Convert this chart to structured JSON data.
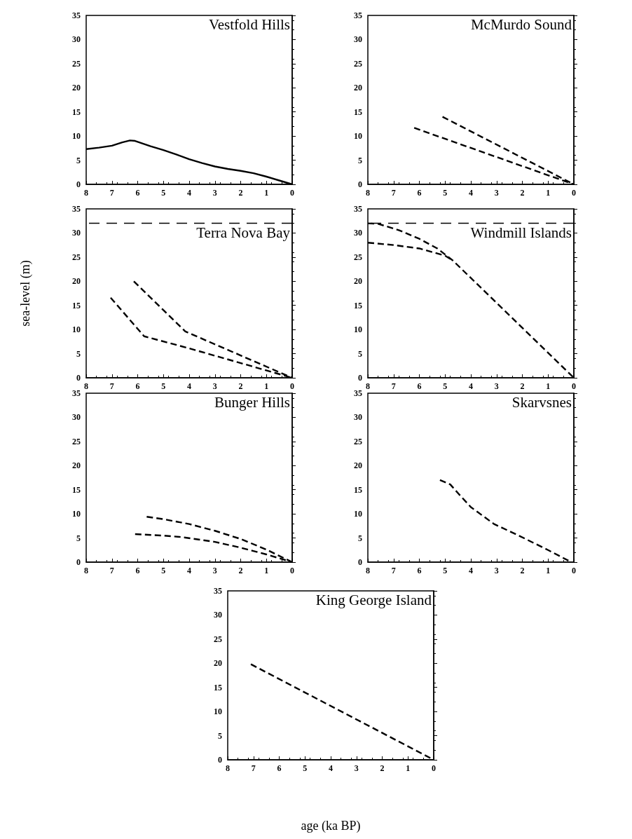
{
  "chart_data": [
    {
      "type": "line",
      "title": "Vestfold Hills",
      "line_style": "solid",
      "xlim": [
        8,
        0
      ],
      "xticks": [
        8,
        7,
        6,
        5,
        4,
        3,
        2,
        1,
        0
      ],
      "ylim": [
        0,
        35
      ],
      "yticks": [
        0,
        5,
        10,
        15,
        20,
        25,
        30,
        35
      ],
      "series": [
        {
          "color": "#000000",
          "x": [
            8,
            7.5,
            7,
            6.6,
            6.3,
            6.1,
            5.5,
            5,
            4.5,
            4,
            3.5,
            3,
            2.5,
            2,
            1.5,
            1,
            0.5,
            0
          ],
          "values": [
            7.3,
            7.6,
            8.0,
            8.7,
            9.1,
            9.0,
            7.9,
            7.1,
            6.2,
            5.2,
            4.4,
            3.7,
            3.2,
            2.8,
            2.3,
            1.6,
            0.8,
            0
          ]
        }
      ]
    },
    {
      "type": "line",
      "title": "McMurdo Sound",
      "line_style": "dashed",
      "xlim": [
        8,
        0
      ],
      "xticks": [
        8,
        7,
        6,
        5,
        4,
        3,
        2,
        1,
        0
      ],
      "ylim": [
        0,
        35
      ],
      "yticks": [
        0,
        5,
        10,
        15,
        20,
        25,
        30,
        35
      ],
      "series": [
        {
          "color": "#000000",
          "x": [
            6.2,
            0
          ],
          "values": [
            11.7,
            0
          ]
        },
        {
          "color": "#000000",
          "x": [
            5.1,
            0
          ],
          "values": [
            14,
            0
          ]
        }
      ]
    },
    {
      "type": "line",
      "title": "Terra Nova Bay",
      "line_style": "dashed",
      "ylabel": "sea-level (m)",
      "xlim": [
        8,
        0
      ],
      "xticks": [
        8,
        7,
        6,
        5,
        4,
        3,
        2,
        1,
        0
      ],
      "ylim": [
        0,
        35
      ],
      "yticks": [
        0,
        5,
        10,
        15,
        20,
        25,
        30,
        35
      ],
      "ref_lines": [
        {
          "axis": "y",
          "value": 32,
          "line_style": "dashed"
        }
      ],
      "series": [
        {
          "color": "#000000",
          "x": [
            7.05,
            5.75,
            4,
            0
          ],
          "values": [
            16.6,
            8.6,
            6.1,
            0
          ]
        },
        {
          "color": "#000000",
          "x": [
            6.15,
            4.15,
            0
          ],
          "values": [
            20,
            9.6,
            0
          ]
        }
      ]
    },
    {
      "type": "line",
      "title": "Windmill Islands",
      "line_style": "dashed",
      "xlim": [
        8,
        0
      ],
      "xticks": [
        8,
        7,
        6,
        5,
        4,
        3,
        2,
        1,
        0
      ],
      "ylim": [
        0,
        35
      ],
      "yticks": [
        0,
        5,
        10,
        15,
        20,
        25,
        30,
        35
      ],
      "ref_lines": [
        {
          "axis": "y",
          "value": 32,
          "line_style": "dashed"
        }
      ],
      "series": [
        {
          "color": "#000000",
          "x": [
            8,
            7.6,
            6.8,
            6,
            5.3,
            4.7,
            0
          ],
          "values": [
            32,
            31.9,
            30.6,
            28.8,
            26.8,
            24.3,
            0
          ]
        },
        {
          "color": "#000000",
          "x": [
            8,
            7,
            6,
            5,
            4.7
          ],
          "values": [
            28,
            27.5,
            26.8,
            25.3,
            24.3
          ]
        }
      ]
    },
    {
      "type": "line",
      "title": "Bunger Hills",
      "line_style": "dashed",
      "xlim": [
        8,
        0
      ],
      "xticks": [
        8,
        7,
        6,
        5,
        4,
        3,
        2,
        1,
        0
      ],
      "ylim": [
        0,
        35
      ],
      "yticks": [
        0,
        5,
        10,
        15,
        20,
        25,
        30,
        35
      ],
      "series": [
        {
          "color": "#000000",
          "x": [
            5.65,
            5,
            4,
            3,
            2,
            1,
            0
          ],
          "values": [
            9.4,
            8.9,
            7.9,
            6.5,
            4.8,
            2.6,
            0
          ]
        },
        {
          "color": "#000000",
          "x": [
            6.1,
            5,
            4.3,
            3,
            2,
            1,
            0
          ],
          "values": [
            5.8,
            5.5,
            5.2,
            4.2,
            3,
            1.6,
            0
          ]
        }
      ]
    },
    {
      "type": "line",
      "title": "Skarvsnes",
      "line_style": "dashed",
      "xlim": [
        8,
        0
      ],
      "xticks": [
        8,
        7,
        6,
        5,
        4,
        3,
        2,
        1,
        0
      ],
      "ylim": [
        0,
        35
      ],
      "yticks": [
        0,
        5,
        10,
        15,
        20,
        25,
        30,
        35
      ],
      "series": [
        {
          "color": "#000000",
          "x": [
            5.2,
            4.8,
            4.5,
            4,
            3.1,
            2.1,
            1,
            0.1
          ],
          "values": [
            17,
            16.1,
            14.3,
            11.4,
            7.9,
            5.4,
            2.5,
            0
          ]
        }
      ]
    },
    {
      "type": "line",
      "title": "King George Island",
      "line_style": "dashed",
      "xlabel": "age (ka BP)",
      "xlim": [
        8,
        0
      ],
      "xticks": [
        8,
        7,
        6,
        5,
        4,
        3,
        2,
        1,
        0
      ],
      "ylim": [
        0,
        35
      ],
      "yticks": [
        0,
        5,
        10,
        15,
        20,
        25,
        30,
        35
      ],
      "series": [
        {
          "color": "#000000",
          "x": [
            7.1,
            0
          ],
          "values": [
            19.8,
            0
          ]
        }
      ]
    }
  ]
}
